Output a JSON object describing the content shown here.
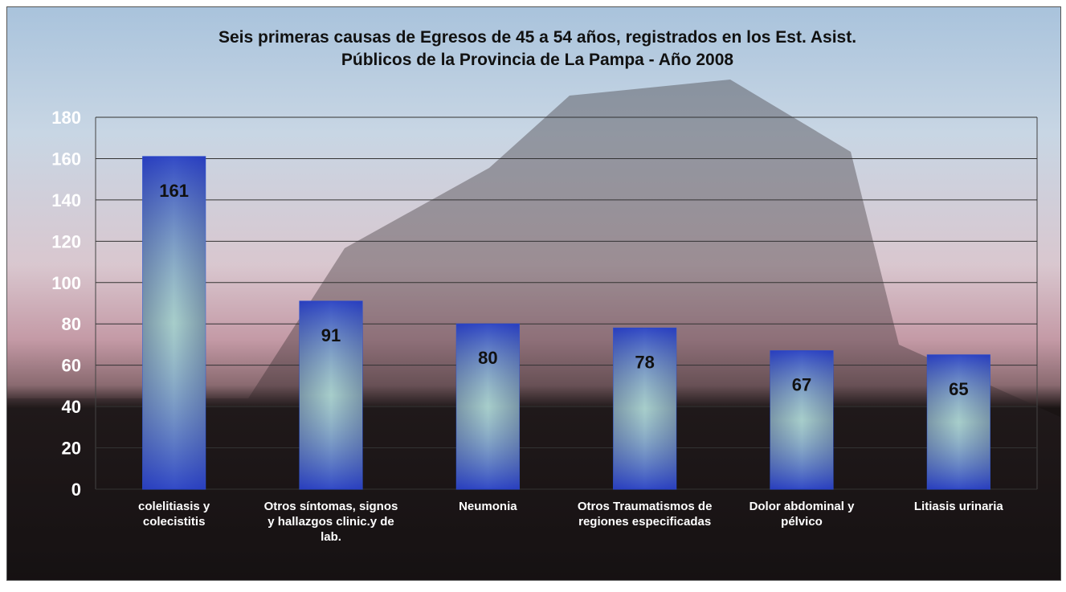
{
  "chart_data": {
    "type": "bar",
    "title": [
      "Seis primeras causas de Egresos de 45 a 54 años, registrados en los Est. Asist.",
      "Públicos de la Provincia de La Pampa - Año 2008"
    ],
    "categories": [
      "colelitiasis y colecistitis",
      "Otros síntomas, signos y hallazgos clinic.y de lab.",
      "Neumonia",
      "Otros Traumatismos de regiones especificadas",
      "Dolor abdominal y pélvico",
      "Litiasis urinaria"
    ],
    "values": [
      161,
      91,
      80,
      78,
      67,
      65
    ],
    "color": "#2a4fd0",
    "ylim": [
      0,
      180
    ],
    "yticks": [
      0,
      20,
      40,
      60,
      80,
      100,
      120,
      140,
      160,
      180
    ],
    "grid": true
  }
}
